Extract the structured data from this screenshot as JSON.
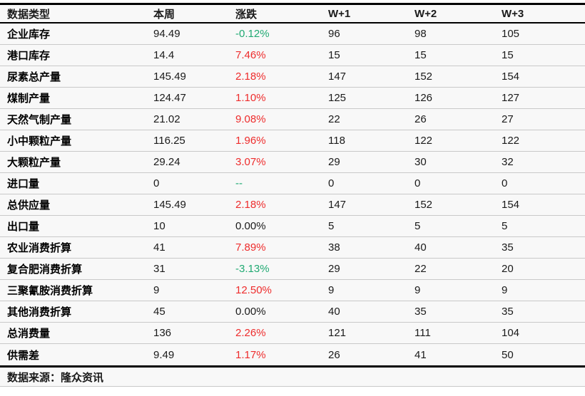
{
  "chart_data": {
    "type": "table",
    "columns": [
      "数据类型",
      "本周",
      "涨跌",
      "W+1",
      "W+2",
      "W+3"
    ],
    "rows": [
      {
        "label": "企业库存",
        "current": "94.49",
        "change": "-0.12%",
        "trend": "down",
        "w1": "96",
        "w2": "98",
        "w3": "105"
      },
      {
        "label": "港口库存",
        "current": "14.4",
        "change": "7.46%",
        "trend": "up",
        "w1": "15",
        "w2": "15",
        "w3": "15"
      },
      {
        "label": "尿素总产量",
        "current": "145.49",
        "change": "2.18%",
        "trend": "up",
        "w1": "147",
        "w2": "152",
        "w3": "154"
      },
      {
        "label": "煤制产量",
        "current": "124.47",
        "change": "1.10%",
        "trend": "up",
        "w1": "125",
        "w2": "126",
        "w3": "127"
      },
      {
        "label": "天然气制产量",
        "current": "21.02",
        "change": "9.08%",
        "trend": "up",
        "w1": "22",
        "w2": "26",
        "w3": "27"
      },
      {
        "label": "小中颗粒产量",
        "current": "116.25",
        "change": "1.96%",
        "trend": "up",
        "w1": "118",
        "w2": "122",
        "w3": "122"
      },
      {
        "label": "大颗粒产量",
        "current": "29.24",
        "change": "3.07%",
        "trend": "up",
        "w1": "29",
        "w2": "30",
        "w3": "32"
      },
      {
        "label": "进口量",
        "current": "0",
        "change": "--",
        "trend": "down",
        "w1": "0",
        "w2": "0",
        "w3": "0"
      },
      {
        "label": "总供应量",
        "current": "145.49",
        "change": "2.18%",
        "trend": "up",
        "w1": "147",
        "w2": "152",
        "w3": "154"
      },
      {
        "label": "出口量",
        "current": "10",
        "change": "0.00%",
        "trend": "flat",
        "w1": "5",
        "w2": "5",
        "w3": "5"
      },
      {
        "label": "农业消费折算",
        "current": "41",
        "change": "7.89%",
        "trend": "up",
        "w1": "38",
        "w2": "40",
        "w3": "35"
      },
      {
        "label": "复合肥消费折算",
        "current": "31",
        "change": "-3.13%",
        "trend": "down",
        "w1": "29",
        "w2": "22",
        "w3": "20"
      },
      {
        "label": "三聚氰胺消费折算",
        "current": "9",
        "change": "12.50%",
        "trend": "up",
        "w1": "9",
        "w2": "9",
        "w3": "9"
      },
      {
        "label": "其他消费折算",
        "current": "45",
        "change": "0.00%",
        "trend": "flat",
        "w1": "40",
        "w2": "35",
        "w3": "35"
      },
      {
        "label": "总消费量",
        "current": "136",
        "change": "2.26%",
        "trend": "up",
        "w1": "121",
        "w2": "111",
        "w3": "104"
      },
      {
        "label": "供需差",
        "current": "9.49",
        "change": "1.17%",
        "trend": "up",
        "w1": "26",
        "w2": "41",
        "w3": "50"
      }
    ],
    "source_note": "数据来源：隆众资讯"
  },
  "colors": {
    "increase_red": "#ee2c2c",
    "decrease_green": "#21aa73",
    "neutral_text": "#1a1a1a",
    "separator_gray": "#c9c9c9",
    "table_background": "#f8f8f8"
  }
}
